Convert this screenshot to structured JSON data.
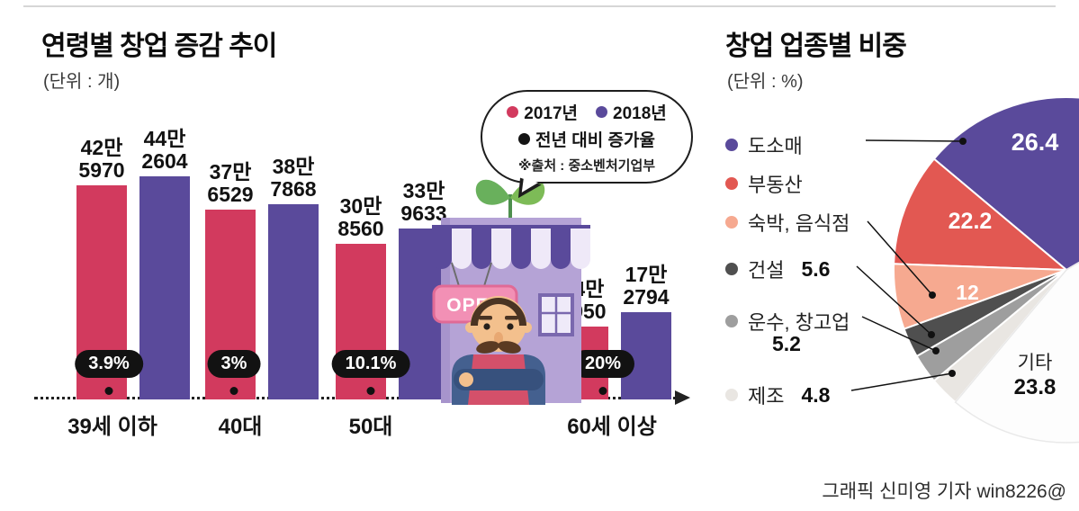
{
  "bar_chart": {
    "title": "연령별 창업 증감  추이",
    "unit": "(단위 : 개)",
    "source": "※출처 : 중소벤처기업부",
    "legend": {
      "y2017": "2017년",
      "y2018": "2018년",
      "growth": "전년 대비 증가율"
    },
    "colors": {
      "y2017": "#d23a5e",
      "y2018": "#5a4a9b",
      "growth": "#141414"
    },
    "groups": [
      {
        "category": "39세 이하",
        "growth": "3.9%",
        "y2017": {
          "value": 425970,
          "l1": "42만",
          "l2": "5970"
        },
        "y2018": {
          "value": 442604,
          "l1": "44만",
          "l2": "2604"
        }
      },
      {
        "category": "40대",
        "growth": "3%",
        "y2017": {
          "value": 376529,
          "l1": "37만",
          "l2": "6529"
        },
        "y2018": {
          "value": 387868,
          "l1": "38만",
          "l2": "7868"
        }
      },
      {
        "category": "50대",
        "growth": "10.1%",
        "y2017": {
          "value": 308560,
          "l1": "30만",
          "l2": "8560"
        },
        "y2018": {
          "value": 339633,
          "l1": "33만",
          "l2": "9633"
        }
      },
      {
        "category": "60세 이상",
        "growth": "20%",
        "y2017": {
          "value": 143950,
          "l1": "14만",
          "l2": "3950"
        },
        "y2018": {
          "value": 172794,
          "l1": "17만",
          "l2": "2794"
        }
      }
    ]
  },
  "pie_chart": {
    "title": "창업 업종별 비중",
    "unit": "(단위 : %)",
    "slices": [
      {
        "label": "도소매",
        "value": 26.4,
        "color": "#5a4a9b"
      },
      {
        "label": "부동산",
        "value": 22.2,
        "color": "#e25852"
      },
      {
        "label": "숙박, 음식점",
        "value": 12,
        "color": "#f6a990"
      },
      {
        "label": "건설",
        "value": 5.6,
        "color": "#4f4f4f"
      },
      {
        "label": "운수, 창고업",
        "value": 5.2,
        "color": "#9e9e9e"
      },
      {
        "label": "제조",
        "value": 4.8,
        "color": "#e9e6e2"
      },
      {
        "label": "기타",
        "value": 23.8,
        "color": "#ffffff"
      }
    ]
  },
  "illustration": {
    "open_sign": "OPEN"
  },
  "credit": "그래픽 신미영 기자 win8226@",
  "chart_data": [
    {
      "type": "bar",
      "title": "연령별 창업 증감 추이",
      "unit": "개",
      "categories": [
        "39세 이하",
        "40대",
        "50대",
        "60세 이상"
      ],
      "series": [
        {
          "name": "2017년",
          "values": [
            425970,
            376529,
            308560,
            143950
          ]
        },
        {
          "name": "2018년",
          "values": [
            442604,
            387868,
            339633,
            172794
          ]
        }
      ],
      "growth_rate_labels": [
        "3.9%",
        "3%",
        "10.1%",
        "20%"
      ],
      "source": "중소벤처기업부",
      "legend_position": "top-right-bubble",
      "grid": false
    },
    {
      "type": "pie",
      "title": "창업 업종별 비중",
      "unit": "%",
      "categories": [
        "도소매",
        "부동산",
        "숙박, 음식점",
        "건설",
        "운수, 창고업",
        "제조",
        "기타"
      ],
      "values": [
        26.4,
        22.2,
        12,
        5.6,
        5.2,
        4.8,
        23.8
      ],
      "legend_position": "left"
    }
  ]
}
